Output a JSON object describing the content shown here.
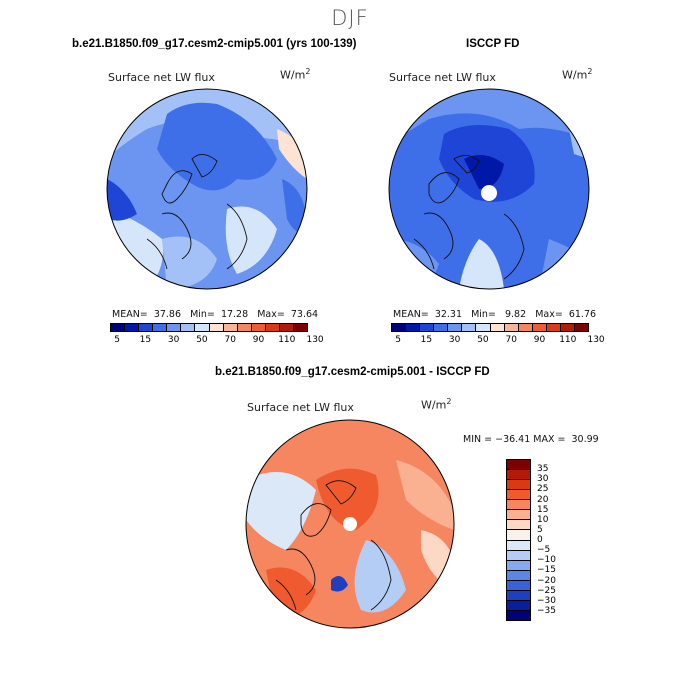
{
  "season": "DJF",
  "colors": {
    "abs_scale": [
      "#00007f",
      "#0018a8",
      "#1f45d6",
      "#3f6fe8",
      "#6b95f0",
      "#a3c1f6",
      "#d6e6fa",
      "#fde3d3",
      "#f7b497",
      "#f4875f",
      "#ef5b33",
      "#dc3a17",
      "#b21c0b",
      "#7e0000"
    ],
    "diff_scale": [
      "#7e0000",
      "#b31a07",
      "#d93a12",
      "#ef5b2f",
      "#f58660",
      "#f9b192",
      "#fcd8c5",
      "#f7f2ec",
      "#dbe8f8",
      "#b3cdf5",
      "#84a9f0",
      "#5b86e6",
      "#3a62d8",
      "#1e3fc0",
      "#0a1d9a",
      "#000078"
    ]
  },
  "chart_data": [
    {
      "type": "heatmap",
      "projection": "north-polar-stereographic",
      "title": "b.e21.B1850.f09_g17.cesm2-cmip5.001 (yrs 100-139)",
      "variable": "Surface net LW flux",
      "units": "W/m",
      "units_exp": "2",
      "stats": {
        "mean_label": "MEAN=",
        "mean": "37.86",
        "min_label": "Min=",
        "min": "17.28",
        "max_label": "Max=",
        "max": "73.64"
      },
      "colorbar_ticks": [
        "5",
        "15",
        "30",
        "50",
        "70",
        "90",
        "110",
        "130"
      ]
    },
    {
      "type": "heatmap",
      "projection": "north-polar-stereographic",
      "title": "ISCCP FD",
      "variable": "Surface net LW flux",
      "units": "W/m",
      "units_exp": "2",
      "stats": {
        "mean_label": "MEAN=",
        "mean": "32.31",
        "min_label": "Min=",
        "min": "9.82",
        "max_label": "Max=",
        "max": "61.76"
      },
      "colorbar_ticks": [
        "5",
        "15",
        "30",
        "50",
        "70",
        "90",
        "110",
        "130"
      ]
    },
    {
      "type": "heatmap",
      "projection": "north-polar-stereographic",
      "title": "b.e21.B1850.f09_g17.cesm2-cmip5.001 - ISCCP FD",
      "variable": "Surface net LW flux",
      "units": "W/m",
      "units_exp": "2",
      "stats_text": "MIN = −36.41 MAX =  30.99",
      "colorbar_ticks": [
        "35",
        "30",
        "25",
        "20",
        "15",
        "10",
        "5",
        "0",
        "−5",
        "−10",
        "−15",
        "−20",
        "−25",
        "−30",
        "−35"
      ]
    }
  ]
}
